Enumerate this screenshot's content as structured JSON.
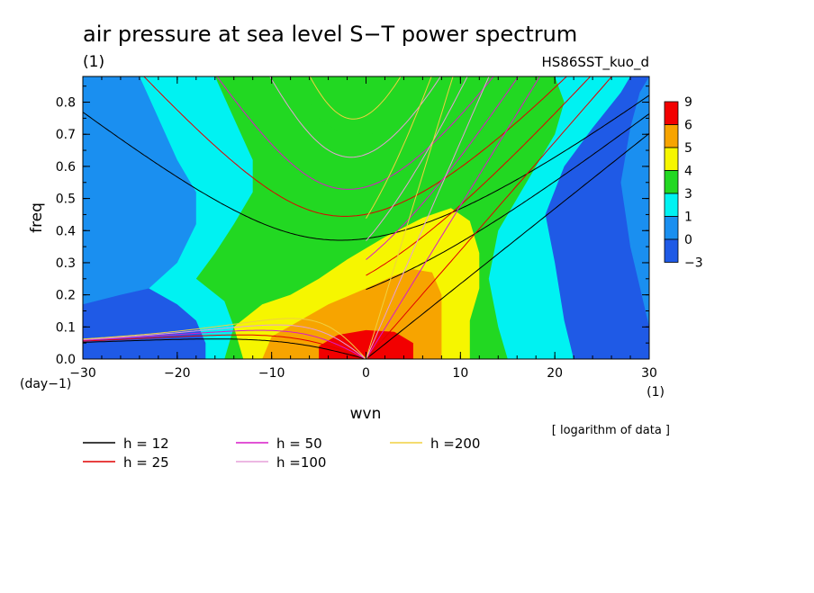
{
  "colors": {
    "contour_bands": [
      "#1f5ae6",
      "#1a8ff0",
      "#00f2f2",
      "#22d822",
      "#f6f600",
      "#f7a400",
      "#f20000"
    ],
    "h12": "#000000",
    "h25": "#e00000",
    "h50": "#d81ac8",
    "h100": "#e6a0d8",
    "h200": "#f0d040"
  },
  "chart_data": {
    "type": "heatmap",
    "title": "air pressure at sea level S−T power spectrum",
    "subtitle_left": "(1)",
    "subtitle_right": "HS86SST_kuo_d",
    "xlabel": "wvn",
    "ylabel": "freq",
    "x_unit": "(1)",
    "y_unit": "(day−1)",
    "note": "[ logarithm of data ]",
    "xlim": [
      -30,
      30
    ],
    "ylim": [
      0,
      0.88
    ],
    "x_ticks": [
      -30,
      -20,
      -10,
      0,
      10,
      20,
      30
    ],
    "y_ticks": [
      0.0,
      0.1,
      0.2,
      0.3,
      0.4,
      0.5,
      0.6,
      0.7,
      0.8
    ],
    "x_tick_labels": [
      "−30",
      "−20",
      "−10",
      "0",
      "10",
      "20",
      "30"
    ],
    "y_tick_labels": [
      "0.0",
      "0.1",
      "0.2",
      "0.3",
      "0.4",
      "0.5",
      "0.6",
      "0.7",
      "0.8"
    ],
    "colorbar": {
      "levels": [
        "9",
        "6",
        "5",
        "4",
        "3",
        "1",
        "0",
        "−3"
      ],
      "bands_top_to_bottom": [
        "#f20000",
        "#f7a400",
        "#f6f600",
        "#22d822",
        "#00f2f2",
        "#1a8ff0",
        "#1f5ae6"
      ]
    },
    "contour_regions": [
      {
        "level": 0,
        "color": "#1a8ff0",
        "polygon": [
          [
            -30,
            0
          ],
          [
            -30,
            0.88
          ],
          [
            -24,
            0.88
          ],
          [
            -22,
            0.75
          ],
          [
            -19,
            0.62
          ],
          [
            -17,
            0.5
          ],
          [
            -16,
            0.4
          ],
          [
            -18,
            0.3
          ],
          [
            -20,
            0.24
          ],
          [
            -26,
            0.2
          ],
          [
            -30,
            0.17
          ],
          [
            -30,
            0
          ],
          [
            30,
            0
          ],
          [
            30,
            0.1
          ],
          [
            28,
            0.35
          ],
          [
            27,
            0.55
          ],
          [
            28,
            0.72
          ],
          [
            29,
            0.83
          ],
          [
            30,
            0.88
          ],
          [
            30,
            0
          ],
          [
            -30,
            0
          ]
        ]
      },
      {
        "level": 1,
        "color": "#00f2f2",
        "polygon": [
          [
            -24,
            0.88
          ],
          [
            -22,
            0.75
          ],
          [
            -20,
            0.62
          ],
          [
            -18,
            0.52
          ],
          [
            -18,
            0.42
          ],
          [
            -20,
            0.3
          ],
          [
            -23,
            0.22
          ],
          [
            -20,
            0.17
          ],
          [
            -18,
            0.12
          ],
          [
            -17,
            0.05
          ],
          [
            -17,
            0
          ],
          [
            22,
            0
          ],
          [
            21,
            0.12
          ],
          [
            20,
            0.3
          ],
          [
            19,
            0.45
          ],
          [
            21,
            0.6
          ],
          [
            24,
            0.72
          ],
          [
            27,
            0.83
          ],
          [
            28,
            0.88
          ]
        ]
      },
      {
        "level": 3,
        "color": "#22d822",
        "polygon": [
          [
            -16,
            0.88
          ],
          [
            -14,
            0.75
          ],
          [
            -12,
            0.62
          ],
          [
            -12,
            0.52
          ],
          [
            -14,
            0.42
          ],
          [
            -16,
            0.33
          ],
          [
            -18,
            0.25
          ],
          [
            -15,
            0.18
          ],
          [
            -14,
            0.1
          ],
          [
            -15,
            0
          ],
          [
            15,
            0
          ],
          [
            14,
            0.1
          ],
          [
            13,
            0.25
          ],
          [
            14,
            0.4
          ],
          [
            17,
            0.55
          ],
          [
            20,
            0.7
          ],
          [
            21,
            0.8
          ],
          [
            20,
            0.88
          ]
        ]
      },
      {
        "level": 4,
        "color": "#f6f600",
        "polygon": [
          [
            -13,
            0
          ],
          [
            -14,
            0.1
          ],
          [
            -11,
            0.17
          ],
          [
            -8,
            0.2
          ],
          [
            -5,
            0.25
          ],
          [
            -2,
            0.31
          ],
          [
            2,
            0.38
          ],
          [
            6,
            0.44
          ],
          [
            9,
            0.47
          ],
          [
            11,
            0.43
          ],
          [
            12,
            0.33
          ],
          [
            12,
            0.22
          ],
          [
            11,
            0.12
          ],
          [
            11,
            0
          ]
        ]
      },
      {
        "level": 5,
        "color": "#f7a400",
        "polygon": [
          [
            -11,
            0
          ],
          [
            -10,
            0.07
          ],
          [
            -7,
            0.12
          ],
          [
            -4,
            0.17
          ],
          [
            0,
            0.22
          ],
          [
            3,
            0.26
          ],
          [
            5,
            0.28
          ],
          [
            7,
            0.27
          ],
          [
            8,
            0.2
          ],
          [
            8,
            0.1
          ],
          [
            8,
            0
          ]
        ]
      },
      {
        "level": 6,
        "color": "#f20000",
        "polygon": [
          [
            -5,
            0
          ],
          [
            -5,
            0.04
          ],
          [
            -3,
            0.075
          ],
          [
            0,
            0.09
          ],
          [
            3,
            0.085
          ],
          [
            5,
            0.05
          ],
          [
            5,
            0
          ]
        ]
      },
      {
        "level": 3,
        "color": "#22d822",
        "polygon": [
          [
            -6,
            0.88
          ],
          [
            -6,
            0.8
          ],
          [
            -5,
            0.75
          ],
          [
            -3,
            0.71
          ],
          [
            0,
            0.7
          ],
          [
            3,
            0.71
          ],
          [
            5,
            0.76
          ],
          [
            6,
            0.82
          ],
          [
            6,
            0.88
          ]
        ]
      }
    ],
    "dispersion_curves": [
      {
        "name": "h = 12",
        "equivalent_depth": 12,
        "color": "#000000"
      },
      {
        "name": "h = 25",
        "equivalent_depth": 25,
        "color": "#e00000"
      },
      {
        "name": "h = 50",
        "equivalent_depth": 50,
        "color": "#d81ac8"
      },
      {
        "name": "h =100",
        "equivalent_depth": 100,
        "color": "#e6a0d8"
      },
      {
        "name": "h =200",
        "equivalent_depth": 200,
        "color": "#f0d040"
      }
    ]
  },
  "legend": {
    "items": [
      {
        "label": "h = 12",
        "color": "#000000"
      },
      {
        "label": "h = 50",
        "color": "#d81ac8"
      },
      {
        "label": "h =200",
        "color": "#f0d040"
      },
      {
        "label": "h = 25",
        "color": "#e00000"
      },
      {
        "label": "h =100",
        "color": "#e6a0d8"
      }
    ]
  }
}
